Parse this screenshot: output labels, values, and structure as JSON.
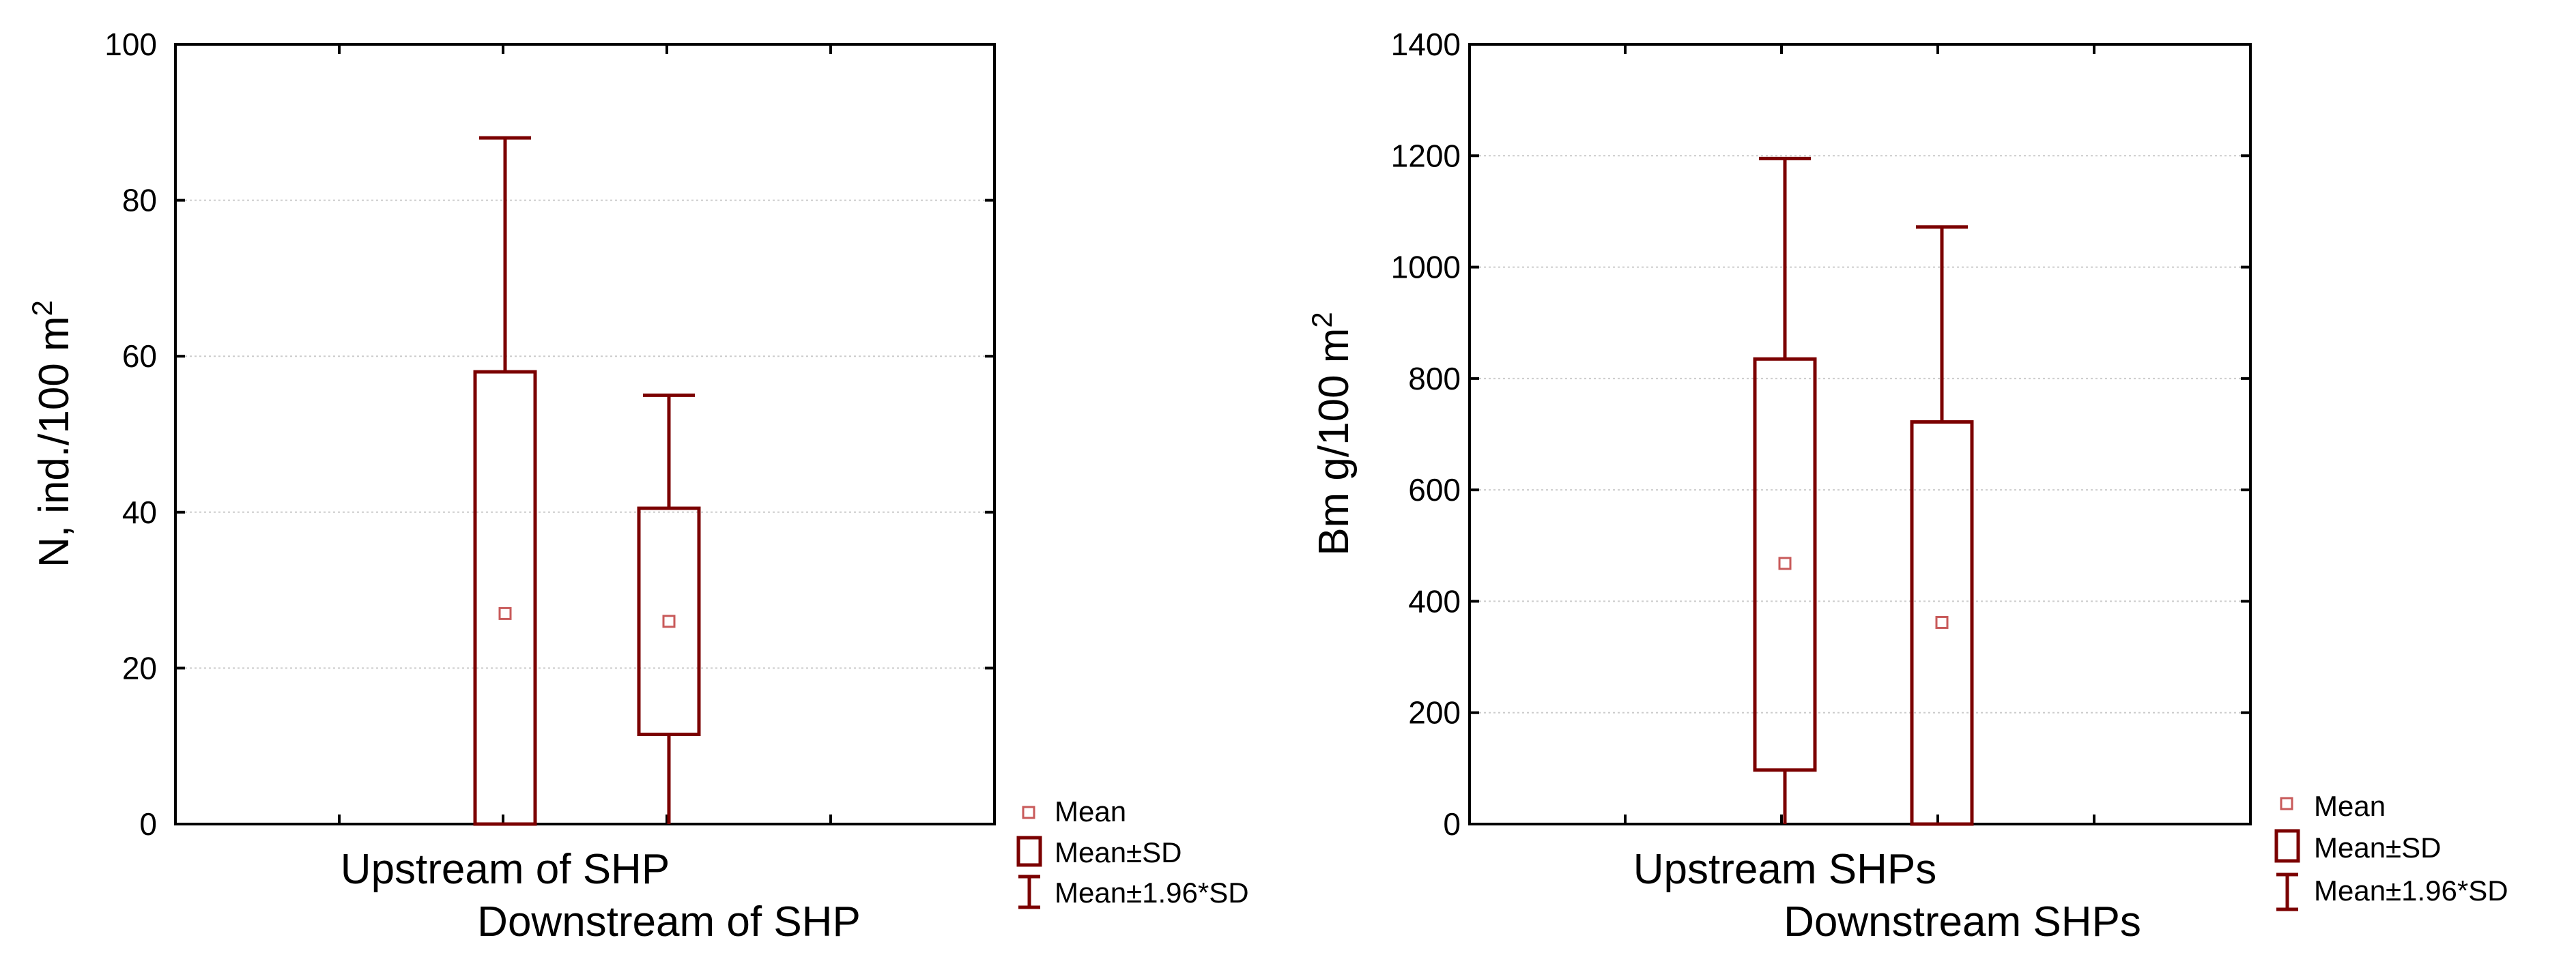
{
  "colors": {
    "box": "#7b0000",
    "mean": "#c85a5a",
    "frame": "#000000",
    "grid": "#cccccc"
  },
  "legend": {
    "mean": "Mean",
    "sd": "Mean±SD",
    "ci": "Mean±1.96*SD"
  },
  "chart_data": [
    {
      "type": "box",
      "ylabel": "N, ind./100 m",
      "ylabel_sup": "2",
      "ylim": [
        0,
        100
      ],
      "yticks": [
        "0",
        "20",
        "40",
        "60",
        "80",
        "100"
      ],
      "grid": true,
      "categories": [
        "Upstream of SHP",
        "Downstream of SHP"
      ],
      "mean": [
        27,
        26
      ],
      "sd_low": [
        0,
        11.5
      ],
      "sd_high": [
        58,
        40.5
      ],
      "ci_low": [
        0,
        0
      ],
      "ci_high": [
        88,
        55
      ]
    },
    {
      "type": "box",
      "ylabel": "Bm g/100 m",
      "ylabel_sup": "2",
      "ylim": [
        0,
        1400
      ],
      "yticks": [
        "0",
        "200",
        "400",
        "600",
        "800",
        "1000",
        "1200",
        "1400"
      ],
      "grid": true,
      "categories": [
        "Upstream SHPs",
        "Downstream SHPs"
      ],
      "mean": [
        468,
        362
      ],
      "sd_low": [
        97,
        0
      ],
      "sd_high": [
        835,
        722
      ],
      "ci_low": [
        0,
        0
      ],
      "ci_high": [
        1195,
        1072
      ]
    }
  ]
}
